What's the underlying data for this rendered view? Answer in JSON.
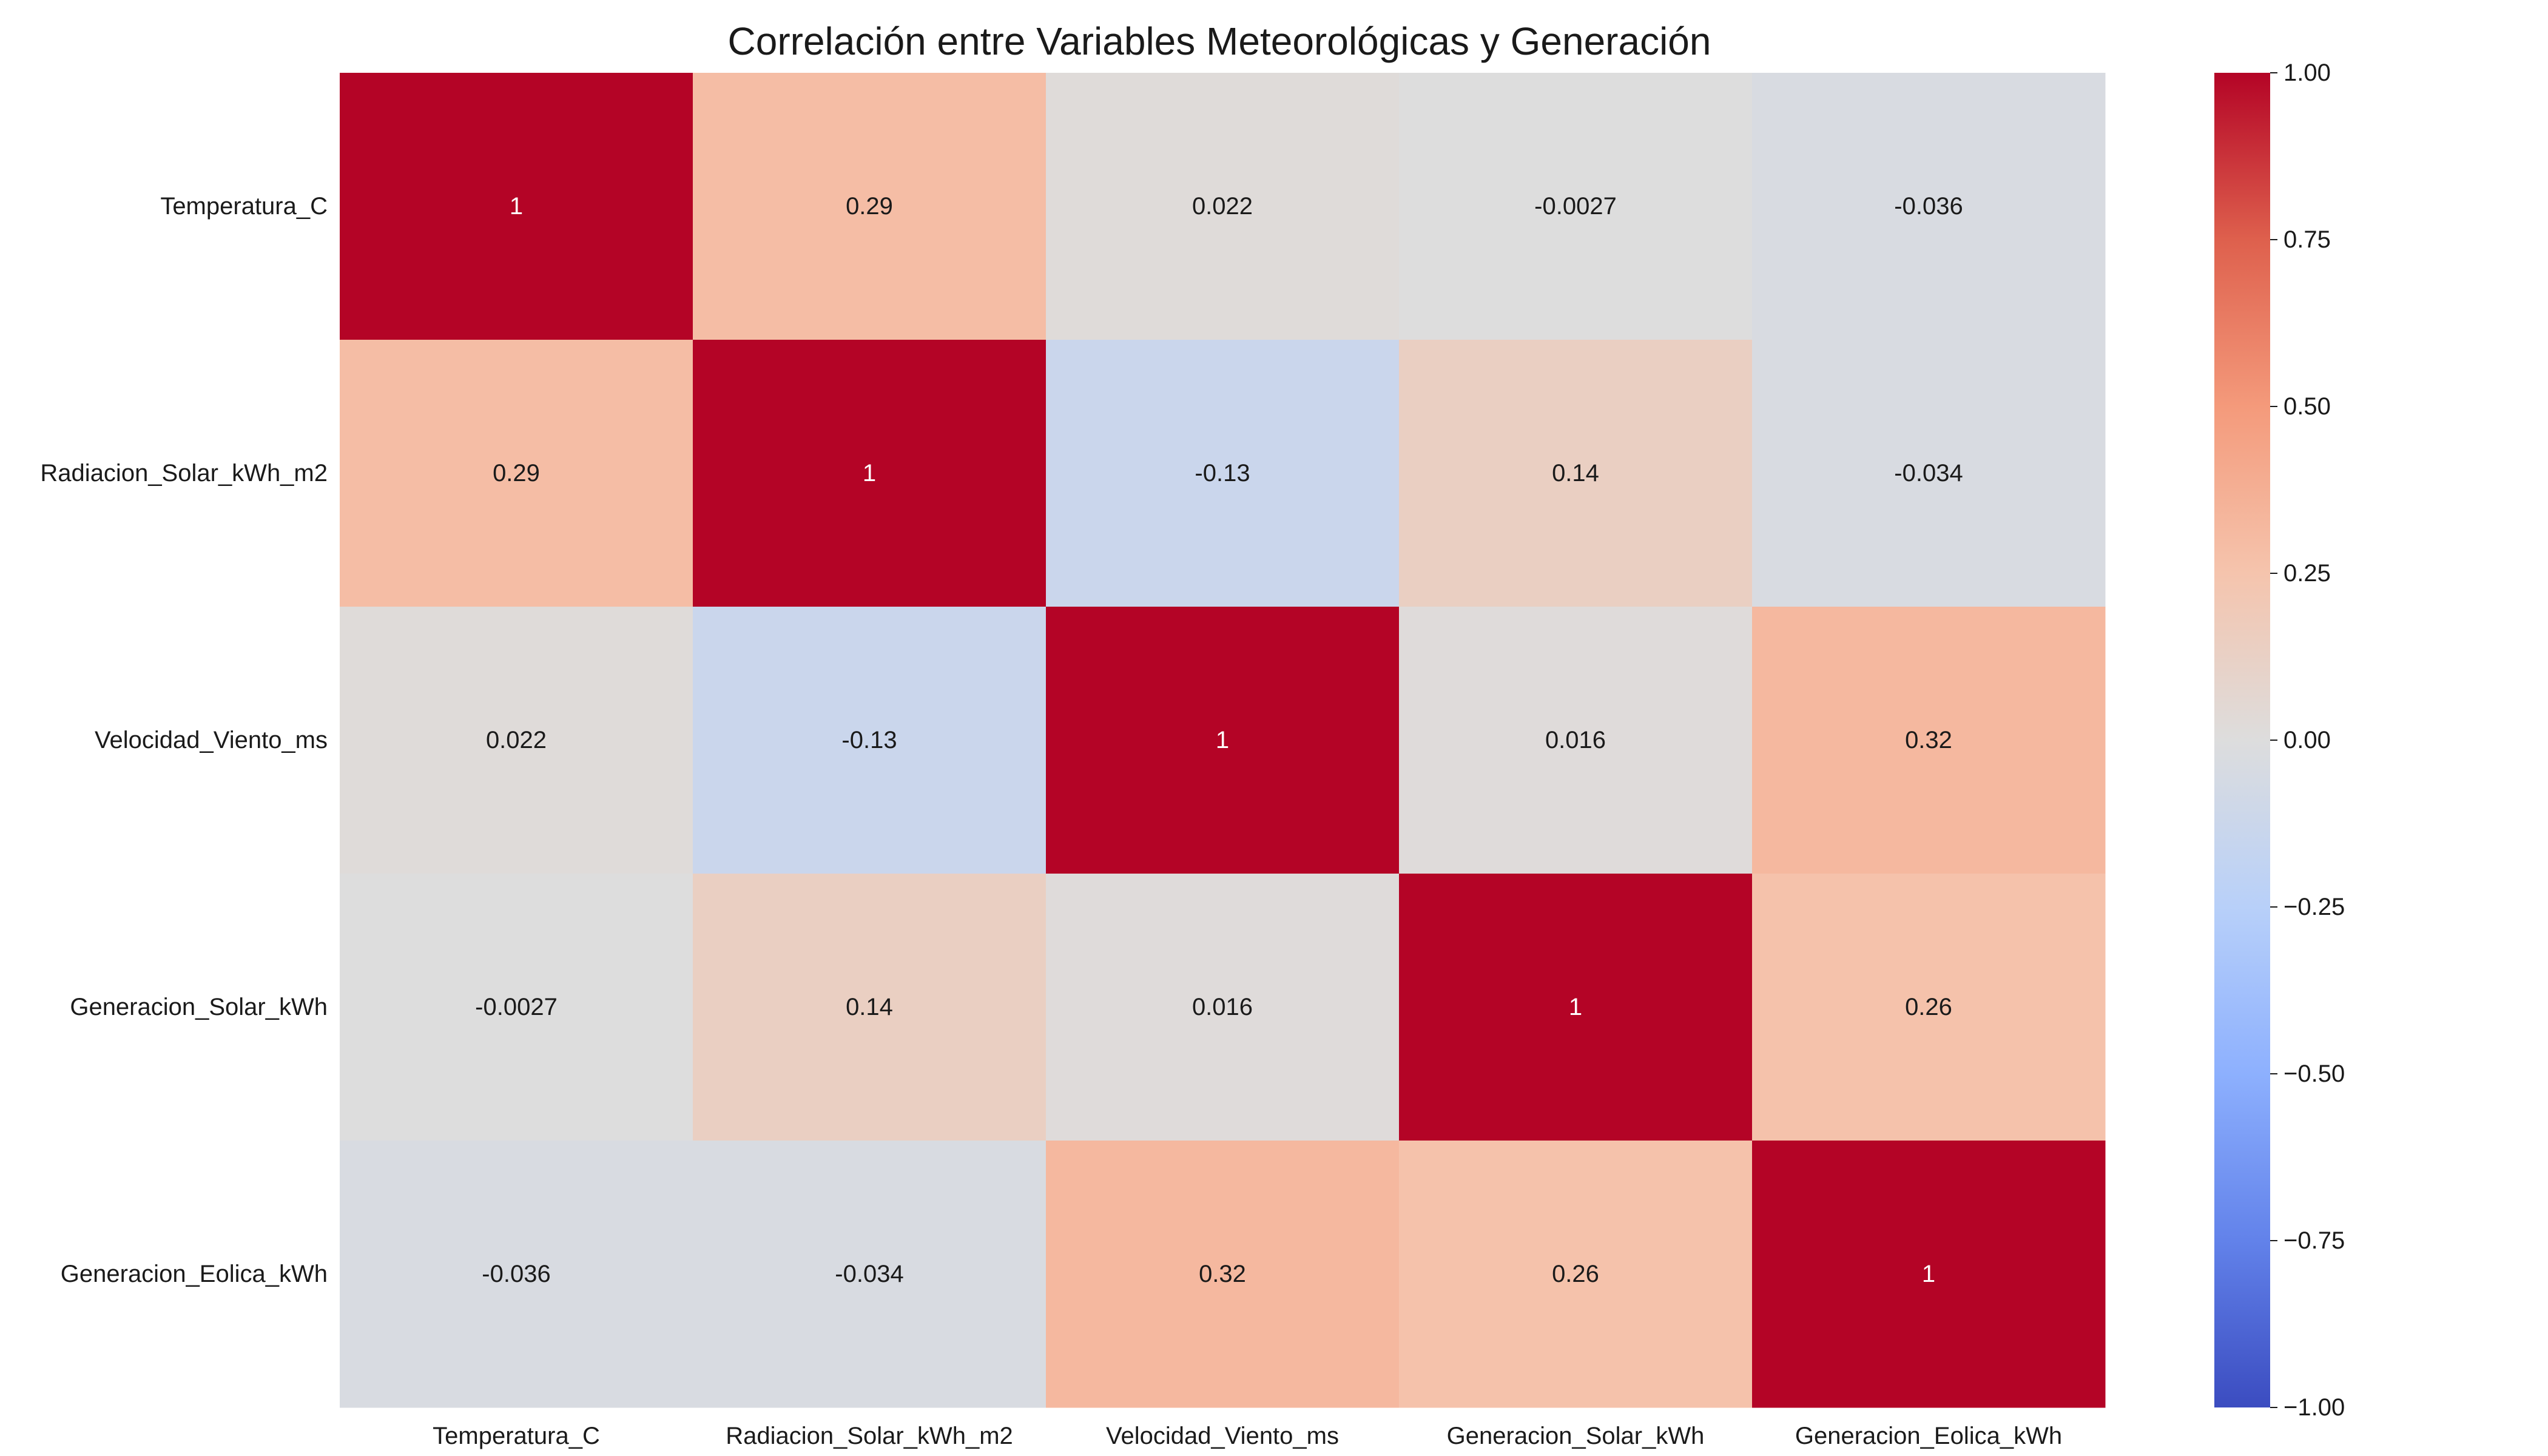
{
  "chart_data": {
    "type": "heatmap",
    "title": "Correlación entre Variables Meteorológicas y Generación",
    "xlabel": "",
    "ylabel": "",
    "rows": [
      "Temperatura_C",
      "Radiacion_Solar_kWh_m2",
      "Velocidad_Viento_ms",
      "Generacion_Solar_kWh",
      "Generacion_Eolica_kWh"
    ],
    "columns": [
      "Temperatura_C",
      "Radiacion_Solar_kWh_m2",
      "Velocidad_Viento_ms",
      "Generacion_Solar_kWh",
      "Generacion_Eolica_kWh"
    ],
    "values": [
      [
        1,
        0.29,
        0.022,
        -0.0027,
        -0.036
      ],
      [
        0.29,
        1,
        -0.13,
        0.14,
        -0.034
      ],
      [
        0.022,
        -0.13,
        1,
        0.016,
        0.32
      ],
      [
        -0.0027,
        0.14,
        0.016,
        1,
        0.26
      ],
      [
        -0.036,
        -0.034,
        0.32,
        0.26,
        1
      ]
    ],
    "annotations": [
      [
        "1",
        "0.29",
        "0.022",
        "-0.0027",
        "-0.036"
      ],
      [
        "0.29",
        "1",
        "-0.13",
        "0.14",
        "-0.034"
      ],
      [
        "0.022",
        "-0.13",
        "1",
        "0.016",
        "0.32"
      ],
      [
        "-0.0027",
        "0.14",
        "0.016",
        "1",
        "0.26"
      ],
      [
        "-0.036",
        "-0.034",
        "0.32",
        "0.26",
        "1"
      ]
    ],
    "colormap": "coolwarm",
    "color_range": [
      -1,
      1
    ],
    "colorbar_ticks": [
      "1.00",
      "0.75",
      "0.50",
      "0.25",
      "0.00",
      "−0.25",
      "−0.50",
      "−0.75",
      "−1.00"
    ],
    "colorbar_tick_values": [
      1,
      0.75,
      0.5,
      0.25,
      0,
      -0.25,
      -0.5,
      -0.75,
      -1
    ],
    "grid": false
  }
}
